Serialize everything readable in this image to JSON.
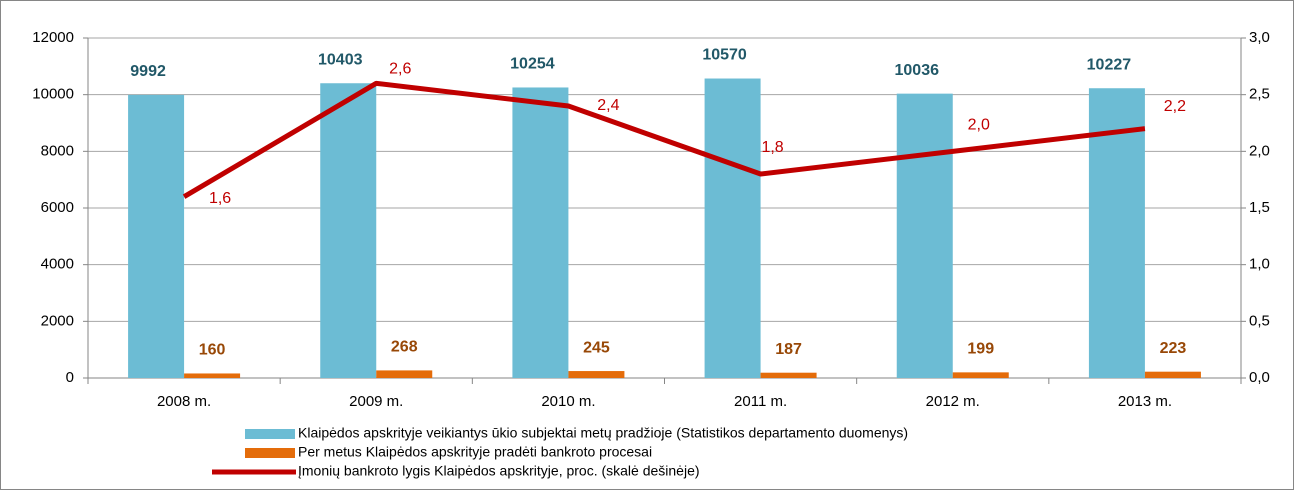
{
  "chart_data": {
    "type": "bar-line",
    "categories": [
      "2008 m.",
      "2009 m.",
      "2010 m.",
      "2011 m.",
      "2012 m.",
      "2013 m."
    ],
    "series": [
      {
        "name": "Klaipėdos apskrityje veikiantys ūkio subjektai metų pradžioje (Statistikos departamento duomenys)",
        "type": "bar",
        "color": "#6cbcd4",
        "values": [
          9992,
          10403,
          10254,
          10570,
          10036,
          10227
        ]
      },
      {
        "name": "Per metus Klaipėdos apskrityje pradėti bankroto procesai",
        "type": "bar",
        "color": "#e46c0a",
        "values": [
          160,
          268,
          245,
          187,
          199,
          223
        ]
      },
      {
        "name": "Įmonių bankroto lygis Klaipėdos apskrityje, proc. (skalė dešinėje)",
        "type": "line",
        "axis": "y2",
        "color": "#c00000",
        "values": [
          1.6,
          2.6,
          2.4,
          1.8,
          2.0,
          2.2
        ],
        "value_labels": [
          "1,6",
          "2,6",
          "2,4",
          "1,8",
          "2,0",
          "2,2"
        ]
      }
    ],
    "ylim": [
      0,
      12000
    ],
    "yticks": [
      0,
      2000,
      4000,
      6000,
      8000,
      10000,
      12000
    ],
    "y2lim": [
      0,
      3
    ],
    "y2ticks": [
      {
        "value": 0,
        "label": "0,0"
      },
      {
        "value": 0.5,
        "label": "0,5"
      },
      {
        "value": 1,
        "label": "1,0"
      },
      {
        "value": 1.5,
        "label": "1,5"
      },
      {
        "value": 2,
        "label": "2,0"
      },
      {
        "value": 2.5,
        "label": "2,5"
      },
      {
        "value": 3,
        "label": "3,0"
      }
    ],
    "grid": true,
    "legend": "bottom"
  }
}
